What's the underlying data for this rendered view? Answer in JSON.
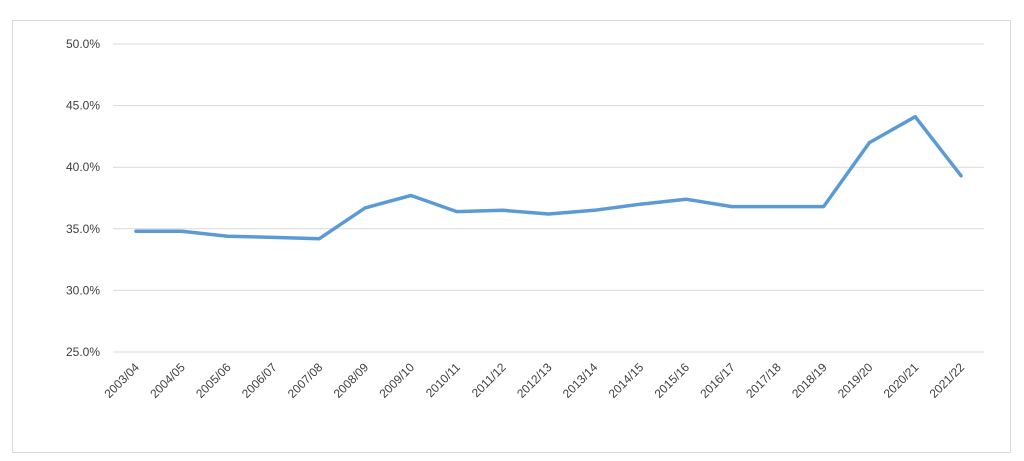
{
  "chart_data": {
    "type": "line",
    "title": "",
    "xlabel": "",
    "ylabel": "",
    "ylim": [
      25,
      50
    ],
    "y_ticks": [
      {
        "value": 25,
        "label": "25.0%"
      },
      {
        "value": 30,
        "label": "30.0%"
      },
      {
        "value": 35,
        "label": "35.0%"
      },
      {
        "value": 40,
        "label": "40.0%"
      },
      {
        "value": 45,
        "label": "45.0%"
      },
      {
        "value": 50,
        "label": "50.0%"
      }
    ],
    "grid": true,
    "legend": "none",
    "categories": [
      "2003/04",
      "2004/05",
      "2005/06",
      "2006/07",
      "2007/08",
      "2008/09",
      "2009/10",
      "2010/11",
      "2011/12",
      "2012/13",
      "2013/14",
      "2014/15",
      "2015/16",
      "2016/17",
      "2017/18",
      "2018/19",
      "2019/20",
      "2020/21",
      "2021/22"
    ],
    "series": [
      {
        "color": "#5b9bd5",
        "values": [
          34.8,
          34.8,
          34.4,
          34.3,
          34.2,
          36.7,
          37.7,
          36.4,
          36.5,
          36.2,
          36.5,
          37.0,
          37.4,
          36.8,
          36.8,
          36.8,
          42.0,
          44.1,
          39.3
        ]
      }
    ]
  }
}
